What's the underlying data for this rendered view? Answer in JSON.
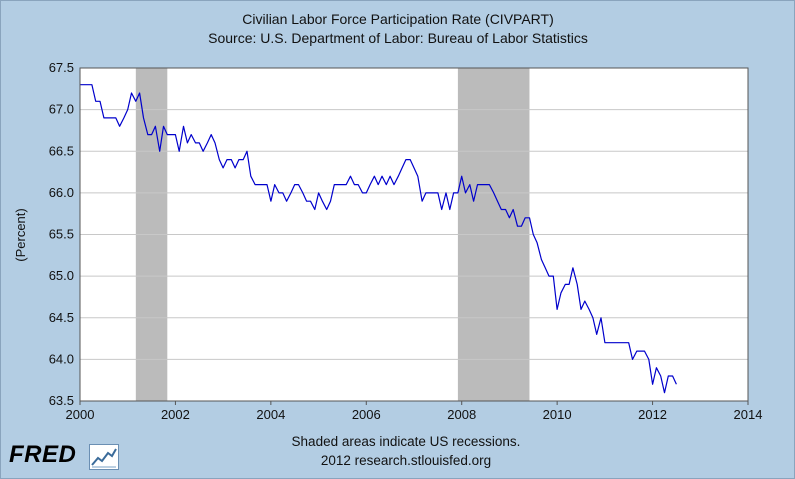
{
  "chart_data": {
    "type": "line",
    "title": "Civilian Labor Force Participation Rate (CIVPART)",
    "subtitle": "Source: U.S. Department of Labor: Bureau of Labor Statistics",
    "ylabel": "(Percent)",
    "xlabel": "",
    "xlim": [
      2000,
      2014
    ],
    "ylim": [
      63.5,
      67.5
    ],
    "xticks": [
      2000,
      2002,
      2004,
      2006,
      2008,
      2010,
      2012,
      2014
    ],
    "yticks": [
      63.5,
      64.0,
      64.5,
      65.0,
      65.5,
      66.0,
      66.5,
      67.0,
      67.5
    ],
    "ytick_labels": [
      "63.5",
      "64.0",
      "64.5",
      "65.0",
      "65.5",
      "66.0",
      "66.5",
      "67.0",
      "67.5"
    ],
    "grid": true,
    "line_color": "#0000cc",
    "recession_color": "#bbbbbb",
    "recessions": [
      [
        2001.17,
        2001.83
      ],
      [
        2007.92,
        2009.42
      ]
    ],
    "series": [
      {
        "name": "CIVPART",
        "values": [
          [
            2000.0,
            67.3
          ],
          [
            2000.08,
            67.3
          ],
          [
            2000.17,
            67.3
          ],
          [
            2000.25,
            67.3
          ],
          [
            2000.33,
            67.1
          ],
          [
            2000.42,
            67.1
          ],
          [
            2000.5,
            66.9
          ],
          [
            2000.58,
            66.9
          ],
          [
            2000.67,
            66.9
          ],
          [
            2000.75,
            66.9
          ],
          [
            2000.83,
            66.8
          ],
          [
            2000.92,
            66.9
          ],
          [
            2001.0,
            67.0
          ],
          [
            2001.08,
            67.2
          ],
          [
            2001.17,
            67.1
          ],
          [
            2001.25,
            67.2
          ],
          [
            2001.33,
            66.9
          ],
          [
            2001.42,
            66.7
          ],
          [
            2001.5,
            66.7
          ],
          [
            2001.58,
            66.8
          ],
          [
            2001.67,
            66.5
          ],
          [
            2001.75,
            66.8
          ],
          [
            2001.83,
            66.7
          ],
          [
            2001.92,
            66.7
          ],
          [
            2002.0,
            66.7
          ],
          [
            2002.08,
            66.5
          ],
          [
            2002.17,
            66.8
          ],
          [
            2002.25,
            66.6
          ],
          [
            2002.33,
            66.7
          ],
          [
            2002.42,
            66.6
          ],
          [
            2002.5,
            66.6
          ],
          [
            2002.58,
            66.5
          ],
          [
            2002.67,
            66.6
          ],
          [
            2002.75,
            66.7
          ],
          [
            2002.83,
            66.6
          ],
          [
            2002.92,
            66.4
          ],
          [
            2003.0,
            66.3
          ],
          [
            2003.08,
            66.4
          ],
          [
            2003.17,
            66.4
          ],
          [
            2003.25,
            66.3
          ],
          [
            2003.33,
            66.4
          ],
          [
            2003.42,
            66.4
          ],
          [
            2003.5,
            66.5
          ],
          [
            2003.58,
            66.2
          ],
          [
            2003.67,
            66.1
          ],
          [
            2003.75,
            66.1
          ],
          [
            2003.83,
            66.1
          ],
          [
            2003.92,
            66.1
          ],
          [
            2004.0,
            65.9
          ],
          [
            2004.08,
            66.1
          ],
          [
            2004.17,
            66.0
          ],
          [
            2004.25,
            66.0
          ],
          [
            2004.33,
            65.9
          ],
          [
            2004.42,
            66.0
          ],
          [
            2004.5,
            66.1
          ],
          [
            2004.58,
            66.1
          ],
          [
            2004.67,
            66.0
          ],
          [
            2004.75,
            65.9
          ],
          [
            2004.83,
            65.9
          ],
          [
            2004.92,
            65.8
          ],
          [
            2005.0,
            66.0
          ],
          [
            2005.08,
            65.9
          ],
          [
            2005.17,
            65.8
          ],
          [
            2005.25,
            65.9
          ],
          [
            2005.33,
            66.1
          ],
          [
            2005.42,
            66.1
          ],
          [
            2005.5,
            66.1
          ],
          [
            2005.58,
            66.1
          ],
          [
            2005.67,
            66.2
          ],
          [
            2005.75,
            66.1
          ],
          [
            2005.83,
            66.1
          ],
          [
            2005.92,
            66.0
          ],
          [
            2006.0,
            66.0
          ],
          [
            2006.08,
            66.1
          ],
          [
            2006.17,
            66.2
          ],
          [
            2006.25,
            66.1
          ],
          [
            2006.33,
            66.2
          ],
          [
            2006.42,
            66.1
          ],
          [
            2006.5,
            66.2
          ],
          [
            2006.58,
            66.1
          ],
          [
            2006.67,
            66.2
          ],
          [
            2006.75,
            66.3
          ],
          [
            2006.83,
            66.4
          ],
          [
            2006.92,
            66.4
          ],
          [
            2007.0,
            66.3
          ],
          [
            2007.08,
            66.2
          ],
          [
            2007.17,
            65.9
          ],
          [
            2007.25,
            66.0
          ],
          [
            2007.33,
            66.0
          ],
          [
            2007.42,
            66.0
          ],
          [
            2007.5,
            66.0
          ],
          [
            2007.58,
            65.8
          ],
          [
            2007.67,
            66.0
          ],
          [
            2007.75,
            65.8
          ],
          [
            2007.83,
            66.0
          ],
          [
            2007.92,
            66.0
          ],
          [
            2008.0,
            66.2
          ],
          [
            2008.08,
            66.0
          ],
          [
            2008.17,
            66.1
          ],
          [
            2008.25,
            65.9
          ],
          [
            2008.33,
            66.1
          ],
          [
            2008.42,
            66.1
          ],
          [
            2008.5,
            66.1
          ],
          [
            2008.58,
            66.1
          ],
          [
            2008.67,
            66.0
          ],
          [
            2008.75,
            65.9
          ],
          [
            2008.83,
            65.8
          ],
          [
            2008.92,
            65.8
          ],
          [
            2009.0,
            65.7
          ],
          [
            2009.08,
            65.8
          ],
          [
            2009.17,
            65.6
          ],
          [
            2009.25,
            65.6
          ],
          [
            2009.33,
            65.7
          ],
          [
            2009.42,
            65.7
          ],
          [
            2009.5,
            65.5
          ],
          [
            2009.58,
            65.4
          ],
          [
            2009.67,
            65.2
          ],
          [
            2009.75,
            65.1
          ],
          [
            2009.83,
            65.0
          ],
          [
            2009.92,
            65.0
          ],
          [
            2010.0,
            64.6
          ],
          [
            2010.08,
            64.8
          ],
          [
            2010.17,
            64.9
          ],
          [
            2010.25,
            64.9
          ],
          [
            2010.33,
            65.1
          ],
          [
            2010.42,
            64.9
          ],
          [
            2010.5,
            64.6
          ],
          [
            2010.58,
            64.7
          ],
          [
            2010.67,
            64.6
          ],
          [
            2010.75,
            64.5
          ],
          [
            2010.83,
            64.3
          ],
          [
            2010.92,
            64.5
          ],
          [
            2011.0,
            64.2
          ],
          [
            2011.08,
            64.2
          ],
          [
            2011.17,
            64.2
          ],
          [
            2011.25,
            64.2
          ],
          [
            2011.33,
            64.2
          ],
          [
            2011.42,
            64.2
          ],
          [
            2011.5,
            64.2
          ],
          [
            2011.58,
            64.0
          ],
          [
            2011.67,
            64.1
          ],
          [
            2011.75,
            64.1
          ],
          [
            2011.83,
            64.1
          ],
          [
            2011.92,
            64.0
          ],
          [
            2012.0,
            63.7
          ],
          [
            2012.08,
            63.9
          ],
          [
            2012.17,
            63.8
          ],
          [
            2012.25,
            63.6
          ],
          [
            2012.33,
            63.8
          ],
          [
            2012.42,
            63.8
          ],
          [
            2012.5,
            63.7
          ]
        ]
      }
    ]
  },
  "footer": {
    "note": "Shaded areas indicate US recessions.",
    "credit": "2012 research.stlouisfed.org"
  },
  "logo": {
    "text": "FRED"
  }
}
